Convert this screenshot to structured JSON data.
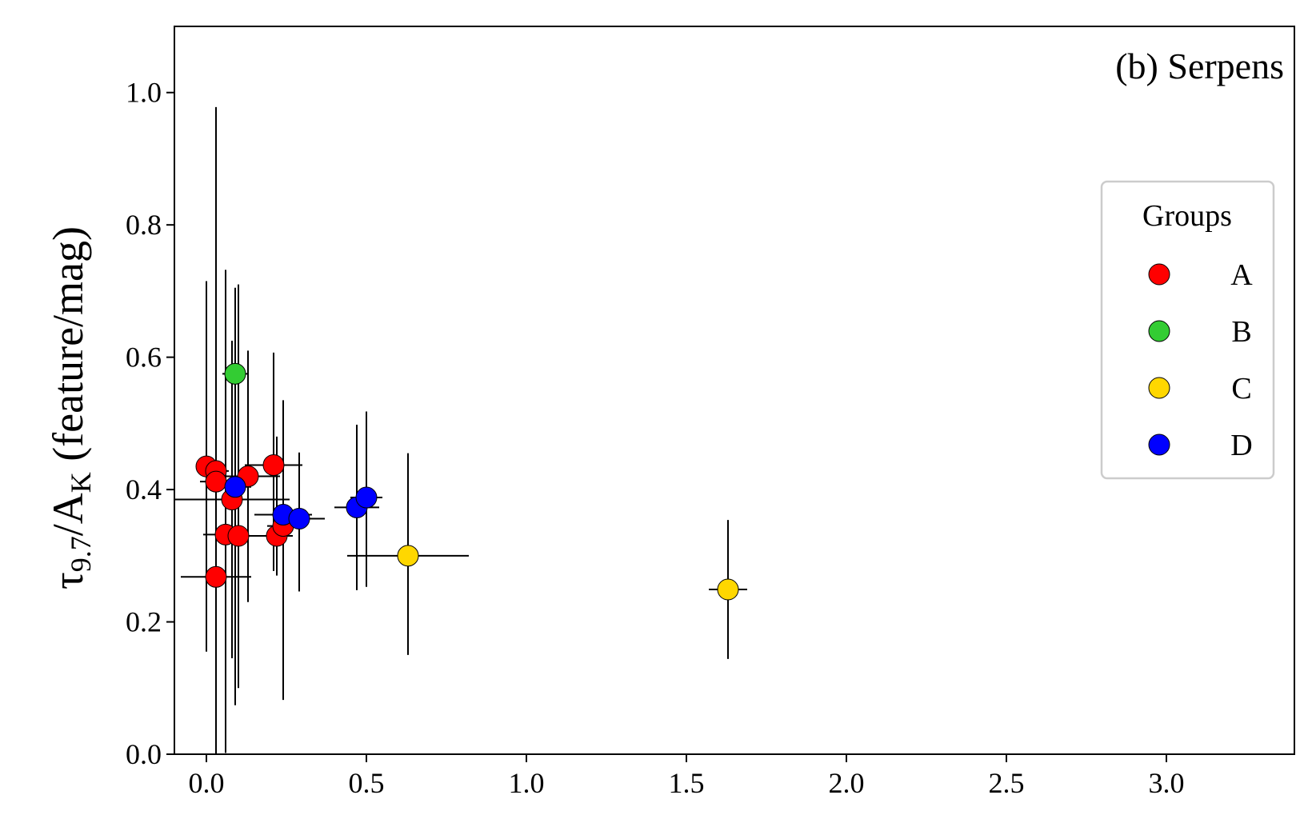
{
  "chart_data": {
    "type": "scatter",
    "title": "",
    "annotation": "(b) Serpens",
    "xlabel": "",
    "ylabel": {
      "tau": "τ",
      "tau_sub": "9.7",
      "slash_a": "/A",
      "a_sub": "K",
      "units": " (feature/mag)"
    },
    "xlim": [
      -0.1,
      3.4
    ],
    "ylim": [
      0.0,
      1.1
    ],
    "xticks": [
      "0.0",
      "0.5",
      "1.0",
      "1.5",
      "2.0",
      "2.5",
      "3.0"
    ],
    "xtick_values": [
      0.0,
      0.5,
      1.0,
      1.5,
      2.0,
      2.5,
      3.0
    ],
    "yticks": [
      "0.0",
      "0.2",
      "0.4",
      "0.6",
      "0.8",
      "1.0"
    ],
    "ytick_values": [
      0.0,
      0.2,
      0.4,
      0.6,
      0.8,
      1.0
    ],
    "grid": false,
    "legend": {
      "title": "Groups",
      "placement": "right",
      "entries": [
        {
          "group": "A",
          "label": "A",
          "color": "#ff0000"
        },
        {
          "group": "B",
          "label": "B",
          "color": "#33cc33"
        },
        {
          "group": "C",
          "label": "C",
          "color": "#ffd700"
        },
        {
          "group": "D",
          "label": "D",
          "color": "#0000ff"
        }
      ]
    },
    "points": [
      {
        "group": "A",
        "x": 0.0,
        "y": 0.435,
        "xerr": 0.03,
        "yerr": [
          0.28,
          0.28
        ]
      },
      {
        "group": "A",
        "x": 0.03,
        "y": 0.428,
        "xerr": 0.04,
        "yerr": [
          0.3,
          0.55
        ]
      },
      {
        "group": "A",
        "x": 0.03,
        "y": 0.412,
        "xerr": 0.05,
        "yerr": [
          0.25,
          0.25
        ]
      },
      {
        "group": "A",
        "x": 0.08,
        "y": 0.385,
        "xerr": 0.18,
        "yerr": [
          0.24,
          0.24
        ]
      },
      {
        "group": "A",
        "x": 0.13,
        "y": 0.42,
        "xerr": 0.1,
        "yerr": [
          0.19,
          0.19
        ]
      },
      {
        "group": "A",
        "x": 0.21,
        "y": 0.437,
        "xerr": 0.09,
        "yerr": [
          0.16,
          0.17
        ]
      },
      {
        "group": "A",
        "x": 0.06,
        "y": 0.332,
        "xerr": 0.07,
        "yerr": [
          0.33,
          0.4
        ]
      },
      {
        "group": "A",
        "x": 0.1,
        "y": 0.33,
        "xerr": 0.07,
        "yerr": [
          0.23,
          0.38
        ]
      },
      {
        "group": "A",
        "x": 0.22,
        "y": 0.33,
        "xerr": 0.05,
        "yerr": [
          0.06,
          0.15
        ]
      },
      {
        "group": "A",
        "x": 0.24,
        "y": 0.345,
        "xerr": 0.05,
        "yerr": [
          0.15,
          0.19
        ]
      },
      {
        "group": "A",
        "x": 0.03,
        "y": 0.268,
        "xerr": 0.11,
        "yerr": [
          0.27,
          0.36
        ]
      },
      {
        "group": "B",
        "x": 0.09,
        "y": 0.575,
        "xerr": 0.04,
        "yerr": [
          0.43,
          0.13
        ]
      },
      {
        "group": "C",
        "x": 0.63,
        "y": 0.3,
        "xerr": 0.19,
        "yerr": [
          0.15,
          0.155
        ]
      },
      {
        "group": "C",
        "x": 1.63,
        "y": 0.249,
        "xerr": 0.06,
        "yerr": [
          0.105,
          0.105
        ]
      },
      {
        "group": "D",
        "x": 0.09,
        "y": 0.404,
        "xerr": 0.05,
        "yerr": [
          0.33,
          0.3
        ]
      },
      {
        "group": "D",
        "x": 0.24,
        "y": 0.362,
        "xerr": 0.09,
        "yerr": [
          0.28,
          0.17
        ]
      },
      {
        "group": "D",
        "x": 0.29,
        "y": 0.356,
        "xerr": 0.08,
        "yerr": [
          0.11,
          0.1
        ]
      },
      {
        "group": "D",
        "x": 0.47,
        "y": 0.373,
        "xerr": 0.07,
        "yerr": [
          0.125,
          0.125
        ]
      },
      {
        "group": "D",
        "x": 0.5,
        "y": 0.388,
        "xerr": 0.05,
        "yerr": [
          0.135,
          0.13
        ]
      }
    ]
  }
}
